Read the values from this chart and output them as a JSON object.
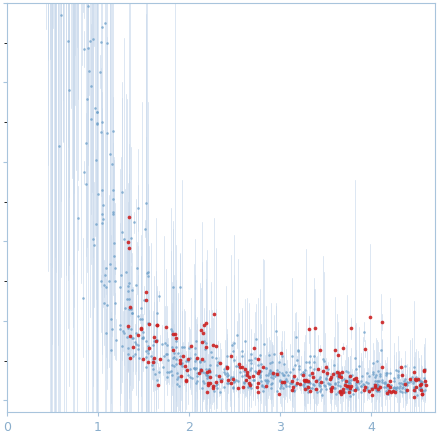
{
  "title": "",
  "xlabel": "",
  "ylabel": "",
  "xlim": [
    0,
    4.7
  ],
  "x_ticks": [
    0,
    1,
    2,
    3,
    4
  ],
  "blue_color": "#6B9EC8",
  "red_color": "#CC2222",
  "error_color": "#CADAEC",
  "bg_color": "#ffffff",
  "spine_color": "#A8C4DC",
  "tick_color": "#A8C4DC",
  "label_color": "#8AAECC",
  "seed": 42,
  "figsize": [
    4.38,
    4.37
  ],
  "dpi": 100
}
